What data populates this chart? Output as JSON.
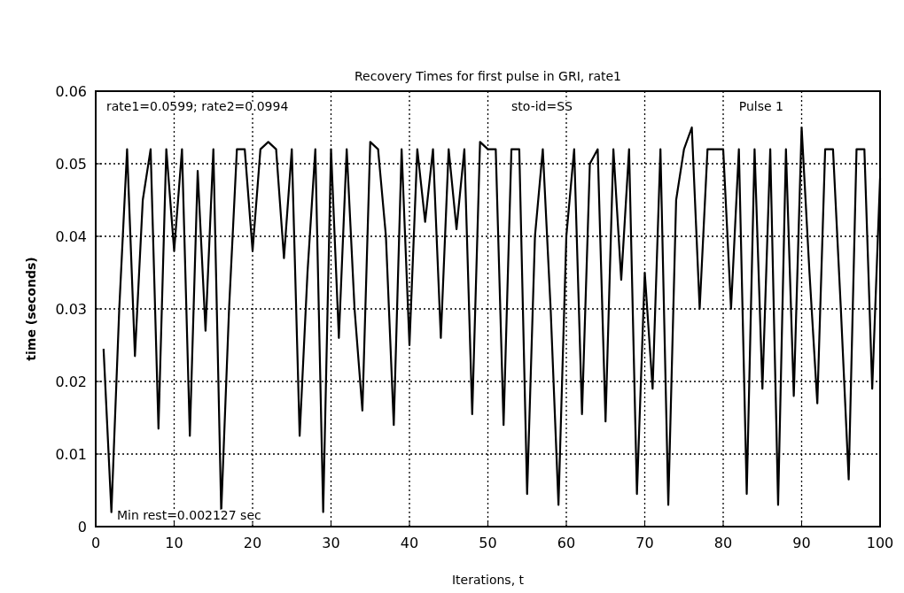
{
  "chart_data": {
    "type": "line",
    "title": "Recovery Times for first pulse in GRI, rate1",
    "xlabel": "Iterations, t",
    "ylabel": "time (seconds)",
    "annotations": [
      "rate1=0.0599; rate2=0.0994",
      "sto-id=SS",
      "Pulse 1",
      "Min rest=0.002127 sec"
    ],
    "xlim": [
      0,
      100
    ],
    "xticks": [
      0,
      10,
      20,
      30,
      40,
      50,
      60,
      70,
      80,
      90,
      100
    ],
    "ylim": [
      0,
      0.06
    ],
    "yticks": [
      0,
      0.01,
      0.02,
      0.03,
      0.04,
      0.05,
      0.06
    ],
    "grid": true,
    "line_style": "solid",
    "x": [
      1,
      2,
      3,
      4,
      5,
      6,
      7,
      8,
      9,
      10,
      11,
      12,
      13,
      14,
      15,
      16,
      17,
      18,
      19,
      20,
      21,
      22,
      23,
      24,
      25,
      26,
      27,
      28,
      29,
      30,
      31,
      32,
      33,
      34,
      35,
      36,
      37,
      38,
      39,
      40,
      41,
      42,
      43,
      44,
      45,
      46,
      47,
      48,
      49,
      50,
      51,
      52,
      53,
      54,
      55,
      56,
      57,
      58,
      59,
      60,
      61,
      62,
      63,
      64,
      65,
      66,
      67,
      68,
      69,
      70,
      71,
      72,
      73,
      74,
      75,
      76,
      77,
      78,
      79,
      80,
      81,
      82,
      83,
      84,
      85,
      86,
      87,
      88,
      89,
      90,
      91,
      92,
      93,
      94,
      95,
      96,
      97,
      98,
      99,
      100
    ],
    "series": [
      {
        "color": "#000000",
        "values": [
          0.0245,
          0.002,
          0.03,
          0.052,
          0.0235,
          0.045,
          0.052,
          0.0135,
          0.052,
          0.038,
          0.052,
          0.0125,
          0.049,
          0.027,
          0.052,
          0.002,
          0.03,
          0.052,
          0.052,
          0.038,
          0.052,
          0.053,
          0.052,
          0.037,
          0.052,
          0.0125,
          0.035,
          0.052,
          0.002,
          0.052,
          0.026,
          0.052,
          0.03,
          0.016,
          0.053,
          0.052,
          0.04,
          0.014,
          0.052,
          0.025,
          0.052,
          0.042,
          0.052,
          0.026,
          0.052,
          0.041,
          0.052,
          0.0155,
          0.053,
          0.052,
          0.052,
          0.014,
          0.052,
          0.052,
          0.0045,
          0.04,
          0.052,
          0.03,
          0.003,
          0.04,
          0.052,
          0.0155,
          0.05,
          0.052,
          0.0145,
          0.052,
          0.034,
          0.052,
          0.0045,
          0.035,
          0.019,
          0.052,
          0.003,
          0.045,
          0.052,
          0.055,
          0.03,
          0.052,
          0.052,
          0.052,
          0.03,
          0.052,
          0.0045,
          0.052,
          0.019,
          0.052,
          0.003,
          0.052,
          0.018,
          0.055,
          0.035,
          0.017,
          0.052,
          0.052,
          0.03,
          0.0065,
          0.052,
          0.052,
          0.019,
          0.048
        ]
      }
    ]
  }
}
